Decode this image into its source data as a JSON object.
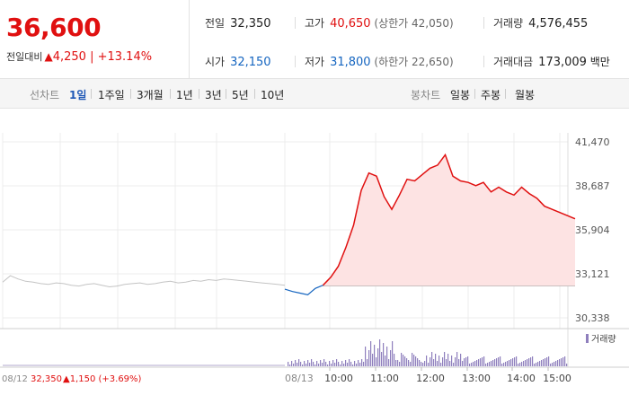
{
  "quote": {
    "price": "36,600",
    "change_label": "전일대비",
    "change_arrow": "▲",
    "change_value": "4,250",
    "change_pct": "+13.14%",
    "prev_close_label": "전일",
    "prev_close": "32,350",
    "open_label": "시가",
    "open": "32,150",
    "high_label": "고가",
    "high": "40,650",
    "upper_limit": "(상한가 42,050)",
    "low_label": "저가",
    "low": "31,800",
    "lower_limit": "(하한가 22,650)",
    "volume_label": "거래량",
    "volume": "4,576,455",
    "amount_label": "거래대금",
    "amount": "173,009",
    "amount_unit": "백만"
  },
  "period_tabs": {
    "label": "선차트",
    "items": [
      "1일",
      "1주일",
      "3개월",
      "1년",
      "3년",
      "5년",
      "10년"
    ],
    "active": "1일"
  },
  "candle_tabs": {
    "label": "봉차트",
    "items": [
      "일봉",
      "주봉",
      "월봉"
    ]
  },
  "colors": {
    "up": "#e01010",
    "down": "#1565c0",
    "fill": "#fde3e3",
    "volume": "#8f7fbd"
  },
  "chart_data": {
    "type": "line",
    "y_ticks": [
      "41,470",
      "38,687",
      "35,904",
      "33,121",
      "30,338"
    ],
    "ylim": [
      30338,
      41470
    ],
    "reference_price": 32350,
    "x_ticks": [
      "10:00",
      "11:00",
      "12:00",
      "13:00",
      "14:00",
      "15:00"
    ],
    "prev_day_date": "08/12",
    "prev_day_close": "32,350",
    "prev_day_change": "▲1,150 (+3.69%)",
    "today_date": "08/13",
    "volume_legend": "거래량",
    "series": [
      {
        "values_prev_day": [
          32600,
          33000,
          32800,
          32650,
          32600,
          32500,
          32450,
          32550,
          32500,
          32400,
          32350,
          32450,
          32500,
          32400,
          32300,
          32350,
          32450,
          32500,
          32550,
          32450,
          32500,
          32600,
          32650,
          32550,
          32600,
          32700,
          32650,
          32750,
          32700,
          32800,
          32750,
          32700,
          32650,
          32600,
          32550,
          32500,
          32450,
          32400
        ],
        "values_today": [
          [
            "09:00",
            32150
          ],
          [
            "09:10",
            32000
          ],
          [
            "09:20",
            31900
          ],
          [
            "09:30",
            31800
          ],
          [
            "09:40",
            32200
          ],
          [
            "09:50",
            32400
          ],
          [
            "10:00",
            32900
          ],
          [
            "10:10",
            33600
          ],
          [
            "10:20",
            34800
          ],
          [
            "10:30",
            36200
          ],
          [
            "10:40",
            38400
          ],
          [
            "10:50",
            39500
          ],
          [
            "11:00",
            39300
          ],
          [
            "11:10",
            38000
          ],
          [
            "11:20",
            37200
          ],
          [
            "11:30",
            38100
          ],
          [
            "11:40",
            39100
          ],
          [
            "11:50",
            39000
          ],
          [
            "12:00",
            39400
          ],
          [
            "12:10",
            39800
          ],
          [
            "12:20",
            40000
          ],
          [
            "12:30",
            40650
          ],
          [
            "12:40",
            39300
          ],
          [
            "12:50",
            39000
          ],
          [
            "13:00",
            38900
          ],
          [
            "13:10",
            38700
          ],
          [
            "13:20",
            38900
          ],
          [
            "13:30",
            38300
          ],
          [
            "13:40",
            38600
          ],
          [
            "13:50",
            38300
          ],
          [
            "14:00",
            38100
          ],
          [
            "14:10",
            38600
          ],
          [
            "14:20",
            38200
          ],
          [
            "14:30",
            37900
          ],
          [
            "14:40",
            37400
          ],
          [
            "14:50",
            37200
          ],
          [
            "15:00",
            37000
          ],
          [
            "15:10",
            36800
          ],
          [
            "15:20",
            36600
          ]
        ]
      }
    ]
  }
}
